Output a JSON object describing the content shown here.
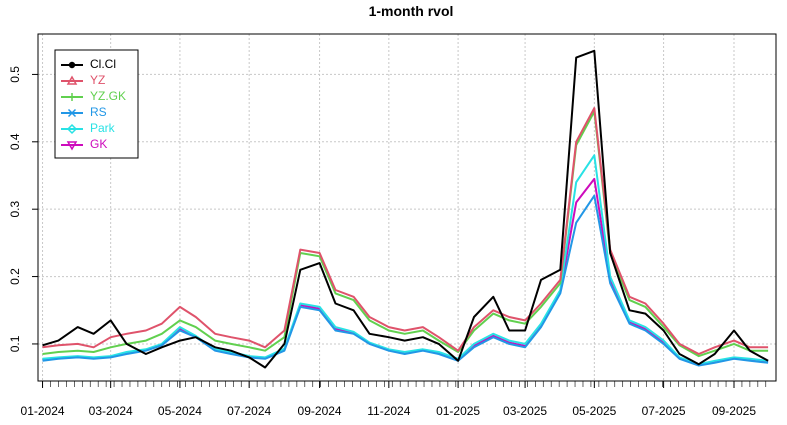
{
  "chart_data": {
    "type": "line",
    "title": "1-month rvol",
    "xlabel": "",
    "ylabel": "",
    "x": [
      "2024-01-01",
      "2024-01-15",
      "2024-02-01",
      "2024-02-15",
      "2024-03-01",
      "2024-03-15",
      "2024-04-01",
      "2024-04-15",
      "2024-05-01",
      "2024-05-15",
      "2024-06-01",
      "2024-06-15",
      "2024-07-01",
      "2024-07-15",
      "2024-08-01",
      "2024-08-15",
      "2024-09-01",
      "2024-09-15",
      "2024-10-01",
      "2024-10-15",
      "2024-11-01",
      "2024-11-15",
      "2024-12-01",
      "2024-12-15",
      "2025-01-01",
      "2025-01-15",
      "2025-02-01",
      "2025-02-15",
      "2025-03-01",
      "2025-03-15",
      "2025-04-01",
      "2025-04-15",
      "2025-05-01",
      "2025-05-15",
      "2025-06-01",
      "2025-06-15",
      "2025-07-01",
      "2025-07-15",
      "2025-08-01",
      "2025-08-15",
      "2025-09-01",
      "2025-09-15",
      "2025-10-01"
    ],
    "x_tick_labels": [
      "01-2024",
      "03-2024",
      "05-2024",
      "07-2024",
      "09-2024",
      "11-2024",
      "01-2025",
      "03-2025",
      "05-2025",
      "07-2025",
      "09-2025"
    ],
    "x_tick_dates": [
      "2024-01-01",
      "2024-03-01",
      "2024-05-01",
      "2024-07-01",
      "2024-09-01",
      "2024-11-01",
      "2025-01-01",
      "2025-03-01",
      "2025-05-01",
      "2025-07-01",
      "2025-09-01"
    ],
    "y_ticks": [
      0.1,
      0.2,
      0.3,
      0.4,
      0.5
    ],
    "y_tick_labels": [
      "0.1",
      "0.2",
      "0.3",
      "0.4",
      "0.5"
    ],
    "xlim": [
      "2023-12-28",
      "2025-10-08"
    ],
    "ylim": [
      0.045,
      0.56
    ],
    "grid": true,
    "legend_position": "top-left",
    "series": [
      {
        "name": "Cl.Cl",
        "color": "#000000",
        "marker": "circle",
        "values": [
          0.098,
          0.105,
          0.125,
          0.115,
          0.135,
          0.1,
          0.085,
          0.095,
          0.105,
          0.11,
          0.095,
          0.09,
          0.08,
          0.065,
          0.1,
          0.21,
          0.22,
          0.16,
          0.15,
          0.115,
          0.11,
          0.105,
          0.11,
          0.1,
          0.075,
          0.14,
          0.17,
          0.12,
          0.12,
          0.195,
          0.21,
          0.525,
          0.535,
          0.235,
          0.15,
          0.145,
          0.12,
          0.085,
          0.07,
          0.085,
          0.12,
          0.09,
          0.075
        ]
      },
      {
        "name": "YZ",
        "color": "#df536b",
        "marker": "triangle",
        "values": [
          0.095,
          0.098,
          0.1,
          0.095,
          0.11,
          0.115,
          0.12,
          0.13,
          0.155,
          0.14,
          0.115,
          0.11,
          0.105,
          0.095,
          0.12,
          0.24,
          0.235,
          0.18,
          0.17,
          0.14,
          0.125,
          0.12,
          0.125,
          0.11,
          0.09,
          0.125,
          0.15,
          0.14,
          0.135,
          0.16,
          0.195,
          0.4,
          0.45,
          0.24,
          0.17,
          0.16,
          0.13,
          0.1,
          0.085,
          0.095,
          0.105,
          0.095,
          0.095
        ]
      },
      {
        "name": "YZ.GK",
        "color": "#61d04f",
        "marker": "plus",
        "values": [
          0.085,
          0.088,
          0.09,
          0.088,
          0.095,
          0.1,
          0.105,
          0.115,
          0.135,
          0.125,
          0.105,
          0.1,
          0.095,
          0.09,
          0.11,
          0.235,
          0.23,
          0.175,
          0.165,
          0.135,
          0.12,
          0.115,
          0.12,
          0.105,
          0.088,
          0.12,
          0.145,
          0.135,
          0.13,
          0.155,
          0.19,
          0.395,
          0.445,
          0.235,
          0.165,
          0.155,
          0.125,
          0.098,
          0.082,
          0.09,
          0.1,
          0.09,
          0.09
        ]
      },
      {
        "name": "RS",
        "color": "#2297e6",
        "marker": "cross",
        "values": [
          0.075,
          0.078,
          0.08,
          0.078,
          0.08,
          0.085,
          0.09,
          0.098,
          0.12,
          0.11,
          0.09,
          0.085,
          0.08,
          0.078,
          0.09,
          0.155,
          0.15,
          0.12,
          0.115,
          0.1,
          0.09,
          0.085,
          0.09,
          0.085,
          0.075,
          0.095,
          0.11,
          0.1,
          0.095,
          0.125,
          0.175,
          0.28,
          0.32,
          0.19,
          0.13,
          0.12,
          0.1,
          0.078,
          0.068,
          0.072,
          0.078,
          0.075,
          0.072
        ]
      },
      {
        "name": "Park",
        "color": "#28e2e5",
        "marker": "diamond",
        "values": [
          0.078,
          0.08,
          0.082,
          0.08,
          0.082,
          0.088,
          0.092,
          0.1,
          0.125,
          0.112,
          0.092,
          0.088,
          0.082,
          0.08,
          0.093,
          0.16,
          0.155,
          0.125,
          0.118,
          0.102,
          0.092,
          0.088,
          0.092,
          0.088,
          0.078,
          0.1,
          0.115,
          0.105,
          0.1,
          0.13,
          0.18,
          0.34,
          0.38,
          0.2,
          0.135,
          0.125,
          0.105,
          0.08,
          0.07,
          0.075,
          0.08,
          0.078,
          0.075
        ]
      },
      {
        "name": "GK",
        "color": "#cd0bbc",
        "marker": "triangle-down",
        "values": [
          0.076,
          0.079,
          0.081,
          0.079,
          0.081,
          0.086,
          0.091,
          0.099,
          0.122,
          0.111,
          0.091,
          0.087,
          0.081,
          0.079,
          0.092,
          0.158,
          0.152,
          0.122,
          0.116,
          0.101,
          0.091,
          0.087,
          0.091,
          0.087,
          0.077,
          0.098,
          0.112,
          0.102,
          0.097,
          0.128,
          0.178,
          0.31,
          0.345,
          0.195,
          0.132,
          0.122,
          0.102,
          0.079,
          0.069,
          0.074,
          0.079,
          0.077,
          0.074
        ]
      }
    ]
  }
}
